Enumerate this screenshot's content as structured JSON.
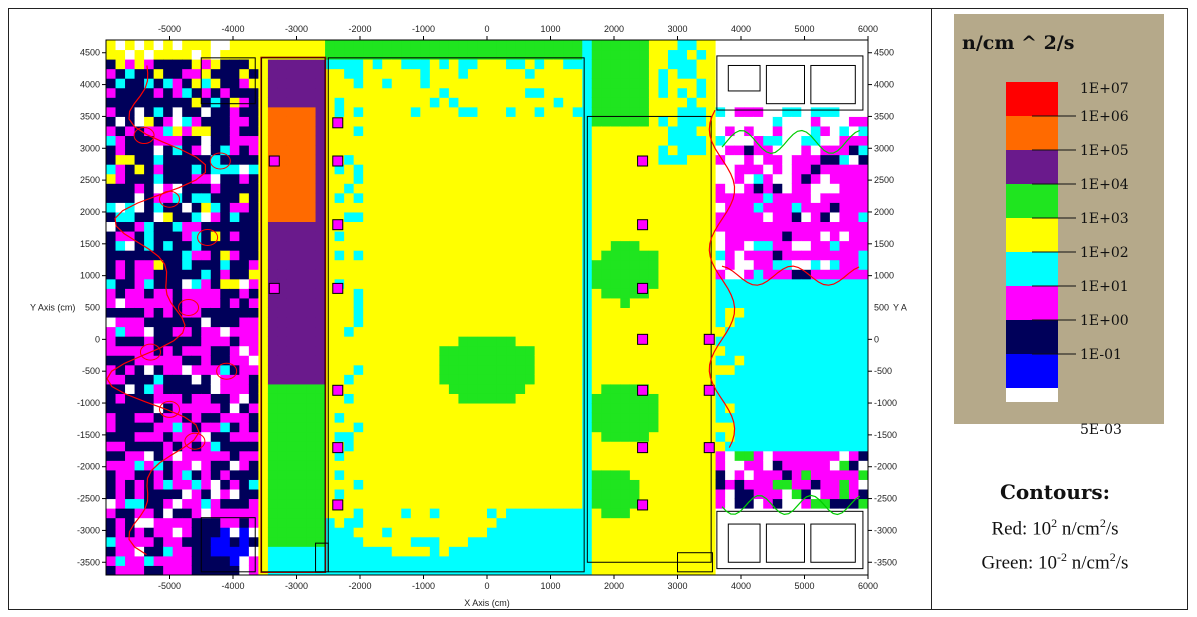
{
  "chart_data": {
    "type": "heatmap",
    "title": "",
    "xlabel": "X Axis (cm)",
    "ylabel": "Y Axis (cm)",
    "xlim": [
      -6000,
      6000
    ],
    "ylim": [
      -3700,
      4700
    ],
    "x_ticks": [
      -5000,
      -4000,
      -3000,
      -2000,
      -1000,
      0,
      1000,
      2000,
      3000,
      4000,
      5000,
      6000
    ],
    "y_ticks": [
      -3500,
      -3000,
      -2500,
      -2000,
      -1500,
      -1000,
      -500,
      0,
      500,
      1000,
      1500,
      2000,
      2500,
      3000,
      3500,
      4000,
      4500
    ],
    "x_tick_labels": [
      "-5000",
      "-4000",
      "-3000",
      "-2000",
      "-1000",
      "0",
      "1000",
      "2000",
      "3000",
      "4000",
      "5000",
      "6000"
    ],
    "y_tick_labels": [
      "-3500",
      "-3000",
      "-2500",
      "-2000",
      "-1500",
      "-1000",
      "-500",
      "0",
      "500",
      "1000",
      "1500",
      "2000",
      "2500",
      "3000",
      "3500",
      "4000",
      "4500"
    ],
    "right_axis_label": "Y A",
    "colorbar": {
      "title": "n/cm ^ 2/s",
      "levels": [
        "1E+07",
        "1E+06",
        "1E+05",
        "1E+04",
        "1E+03",
        "1E+02",
        "1E+01",
        "1E+00",
        "1E-01",
        "5E-03"
      ],
      "colors": [
        "#ff0000",
        "#ff6a00",
        "#6a1a8c",
        "#1fe51f",
        "#ffff00",
        "#00ffff",
        "#ff00ff",
        "#00005a",
        "#0000ff",
        "#ffffff"
      ]
    },
    "regions": [
      {
        "x": [
          -6000,
          -3600
        ],
        "y": [
          -3700,
          4350
        ],
        "value": "1E+01 / 1E-01 mix"
      },
      {
        "x": [
          -3500,
          -2600
        ],
        "y": [
          -3700,
          4450
        ],
        "value": "1E+05"
      },
      {
        "x": [
          -3400,
          -2700
        ],
        "y": [
          1800,
          3600
        ],
        "value": "1E+06"
      },
      {
        "x": [
          -3500,
          -2600
        ],
        "y": [
          -3200,
          -700
        ],
        "value": "1E+04"
      },
      {
        "x": [
          -2500,
          1500
        ],
        "y": [
          -3700,
          4350
        ],
        "value": "1E+03"
      },
      {
        "x": [
          -800,
          800
        ],
        "y": [
          -1000,
          100
        ],
        "value": "1E+04"
      },
      {
        "x": [
          1600,
          3500
        ],
        "y": [
          -3500,
          3500
        ],
        "value": "1E+03"
      },
      {
        "x": [
          3600,
          5900
        ],
        "y": [
          -1800,
          1000
        ],
        "value": "1E+02"
      },
      {
        "x": [
          3600,
          5900
        ],
        "y": [
          1000,
          3000
        ],
        "value": "1E+01"
      }
    ],
    "grid": false
  },
  "contours": {
    "title": "Contours:",
    "red": {
      "prefix": "Red: 10",
      "exp": "2",
      "unit": " n/cm",
      "unit_exp": "2",
      "suffix": "/s",
      "color": "#ff0000"
    },
    "green": {
      "prefix": "Green: 10",
      "exp": "-2",
      "unit": " n/cm",
      "unit_exp": "2",
      "suffix": "/s",
      "color": "#00cc00"
    }
  }
}
